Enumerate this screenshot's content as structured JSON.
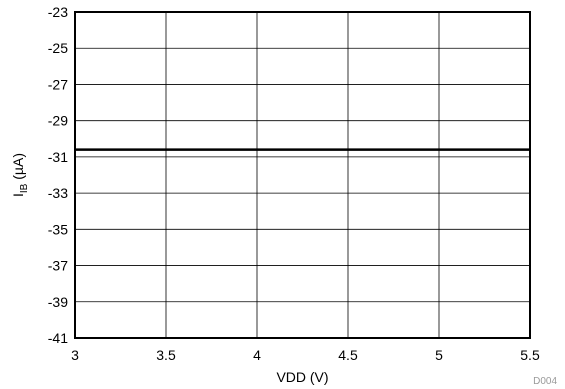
{
  "chart_data": {
    "type": "line",
    "title": "",
    "xlabel": "VDD (V)",
    "ylabel": {
      "main": "I",
      "sub": "IB",
      "unit": " (µA)"
    },
    "xlim": [
      3,
      5.5
    ],
    "ylim": [
      -41,
      -23
    ],
    "x_ticks": [
      3,
      3.5,
      4,
      4.5,
      5,
      5.5
    ],
    "x_tick_labels": [
      "3",
      "3.5",
      "4",
      "4.5",
      "5",
      "5.5"
    ],
    "y_ticks": [
      -23,
      -25,
      -27,
      -29,
      -31,
      -33,
      -35,
      -37,
      -39,
      -41
    ],
    "y_tick_labels": [
      "-23",
      "-25",
      "-27",
      "-29",
      "-31",
      "-33",
      "-35",
      "-37",
      "-39",
      "-41"
    ],
    "grid": true,
    "series": [
      {
        "x": [
          3,
          3.5,
          4,
          4.5,
          5,
          5.5
        ],
        "y": [
          -30.6,
          -30.6,
          -30.6,
          -30.6,
          -30.6,
          -30.6
        ],
        "color": "#000000"
      }
    ],
    "footnote": "D004"
  }
}
